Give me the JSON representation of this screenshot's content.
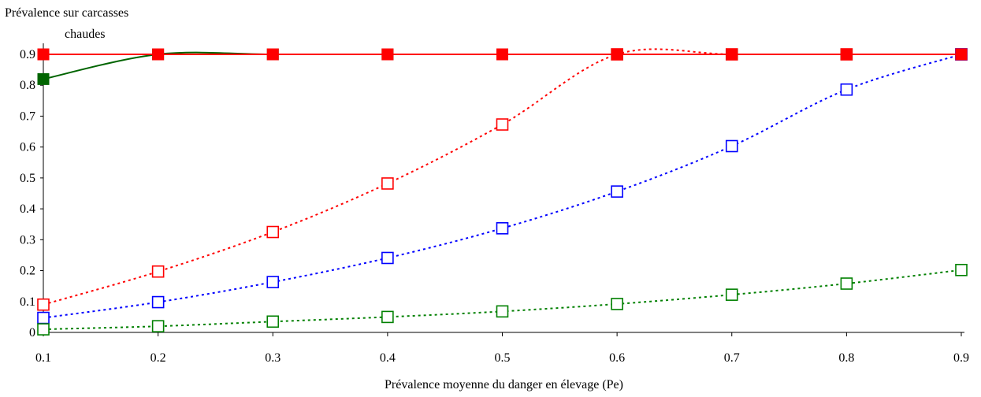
{
  "chart_data": {
    "type": "line",
    "ylabel_lines": [
      "Prévalence sur carcasses",
      "chaudes"
    ],
    "xlabel": "Prévalence moyenne du danger en élevage (Pe)",
    "x": [
      0.1,
      0.2,
      0.3,
      0.4,
      0.5,
      0.6,
      0.7,
      0.8,
      0.9
    ],
    "x_tick_labels": [
      "0.1",
      "0.2",
      "0.3",
      "0.4",
      "0.5",
      "0.6",
      "0.7",
      "0.8",
      "0.9"
    ],
    "y_tick_labels": [
      "0",
      "0.1",
      "0.2",
      "0.3",
      "0.4",
      "0.5",
      "0.6",
      "0.7",
      "0.8",
      "0.9"
    ],
    "y_ticks": [
      0,
      0.1,
      0.2,
      0.3,
      0.4,
      0.5,
      0.6,
      0.7,
      0.8,
      0.9
    ],
    "xlim": [
      0.1,
      0.9
    ],
    "ylim": [
      0,
      0.9
    ],
    "grid": false,
    "legend": "none",
    "series": [
      {
        "color": "#ff0000",
        "line": "dotted",
        "marker": "open-square",
        "values": [
          0.09,
          0.197,
          0.325,
          0.482,
          0.673,
          0.9,
          0.9,
          0.9,
          0.9
        ]
      },
      {
        "color": "#0000ff",
        "line": "dotted",
        "marker": "open-square",
        "values": [
          0.047,
          0.098,
          0.163,
          0.241,
          0.337,
          0.456,
          0.603,
          0.786,
          0.9
        ]
      },
      {
        "color": "#008000",
        "line": "dotted",
        "marker": "open-square",
        "values": [
          0.01,
          0.02,
          0.035,
          0.05,
          0.068,
          0.092,
          0.122,
          0.158,
          0.202
        ]
      },
      {
        "color": "#006400",
        "line": "solid",
        "marker": "filled-square",
        "values": [
          0.82,
          0.9,
          0.9,
          0.9,
          0.9,
          0.9,
          0.9,
          0.9,
          0.9
        ]
      },
      {
        "color": "#ff0000",
        "line": "solid",
        "marker": "filled-square",
        "values": [
          0.9,
          0.9,
          0.9,
          0.9,
          0.9,
          0.9,
          0.9,
          0.9,
          0.9
        ]
      }
    ]
  }
}
